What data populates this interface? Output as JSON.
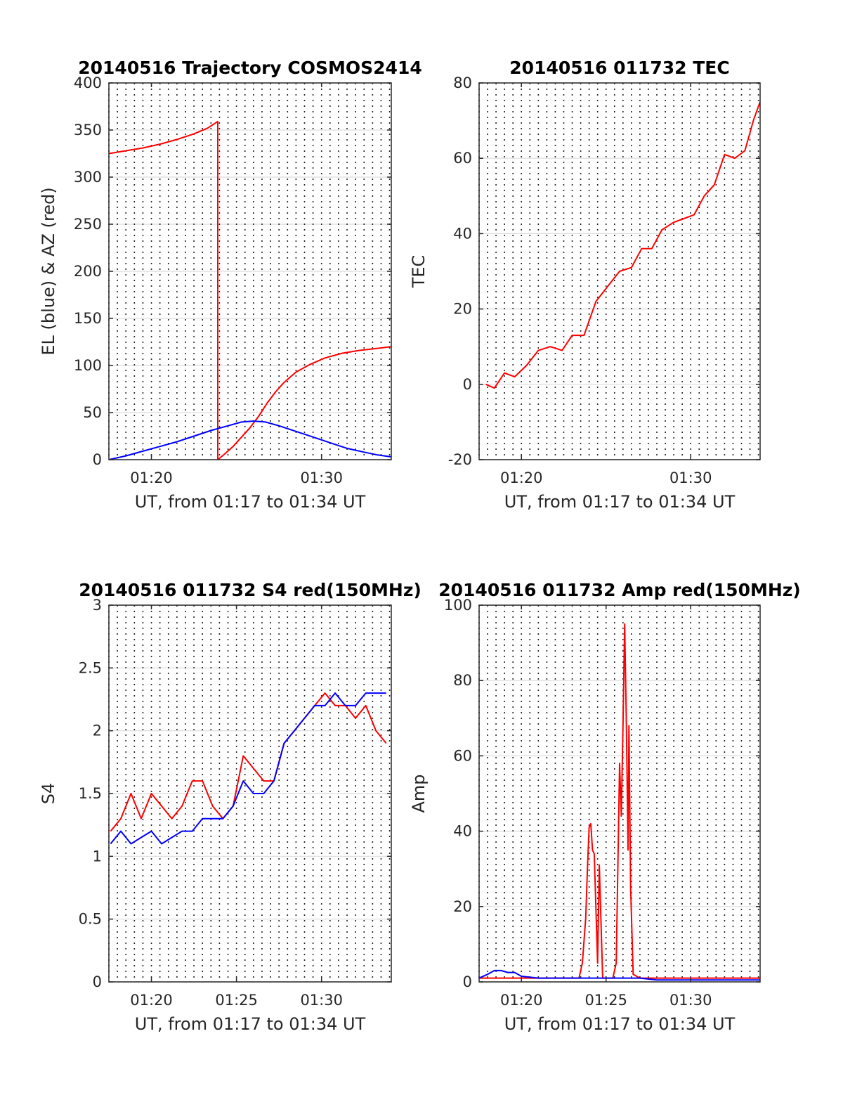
{
  "chart_data": [
    {
      "type": "line",
      "title": "20140516 Trajectory COSMOS2414",
      "xlabel": "UT, from 01:17 to 01:34 UT",
      "ylabel": "EL (blue) & AZ (red)",
      "x_unit": "minutes after 01:00 UT",
      "xlim": [
        17.5,
        34.1
      ],
      "ylim": [
        0,
        400
      ],
      "yticks": [
        0,
        50,
        100,
        150,
        200,
        250,
        300,
        350,
        400
      ],
      "xticks": [
        {
          "value": 20,
          "label": "01:20"
        },
        {
          "value": 30,
          "label": "01:30"
        }
      ],
      "grid": true,
      "series": [
        {
          "name": "AZ",
          "color": "#ff0000",
          "x": [
            17.5,
            18.5,
            19.5,
            20.5,
            21.5,
            22.5,
            23.3,
            23.9,
            23.9,
            24.3,
            24.8,
            25.3,
            25.8,
            26.3,
            26.8,
            27.3,
            27.8,
            28.5,
            29.3,
            30.2,
            31.2,
            32.2,
            33.2,
            34.1
          ],
          "y": [
            325,
            328,
            331,
            335,
            340,
            346,
            352,
            359,
            0,
            6,
            14,
            24,
            34,
            46,
            60,
            72,
            82,
            93,
            101,
            108,
            113,
            116,
            118,
            120
          ]
        },
        {
          "name": "EL",
          "color": "#0000ff",
          "x": [
            17.5,
            18.5,
            19.5,
            20.5,
            21.5,
            22.5,
            23.5,
            24.5,
            25.3,
            26.0,
            26.7,
            27.5,
            28.5,
            29.5,
            30.5,
            31.5,
            32.5,
            33.3,
            34.1
          ],
          "y": [
            0,
            4,
            9,
            14,
            19,
            25,
            31,
            36,
            40,
            41,
            40,
            36,
            30,
            24,
            18,
            12,
            8,
            5,
            3
          ]
        }
      ]
    },
    {
      "type": "line",
      "title": "20140516 011732 TEC",
      "xlabel": "UT, from 01:17 to 01:34 UT",
      "ylabel": "TEC",
      "x_unit": "minutes after 01:00 UT",
      "xlim": [
        17.5,
        34.1
      ],
      "ylim": [
        -20,
        80
      ],
      "yticks": [
        -20,
        0,
        20,
        40,
        60,
        80
      ],
      "xticks": [
        {
          "value": 20,
          "label": "01:20"
        },
        {
          "value": 30,
          "label": "01:30"
        }
      ],
      "grid": true,
      "series": [
        {
          "name": "TEC",
          "color": "#ff0000",
          "x": [
            17.9,
            18.4,
            19.0,
            19.6,
            20.3,
            21.0,
            21.7,
            22.4,
            23.0,
            23.7,
            24.4,
            25.1,
            25.8,
            26.5,
            27.1,
            27.7,
            28.3,
            29.0,
            29.6,
            30.2,
            30.8,
            31.4,
            32.0,
            32.6,
            33.2,
            33.7,
            34.1
          ],
          "y": [
            0,
            -1,
            3,
            2,
            5,
            9,
            10,
            9,
            13,
            13,
            22,
            26,
            30,
            31,
            36,
            36,
            41,
            43,
            44,
            45,
            50,
            53,
            61,
            60,
            62,
            70,
            75
          ]
        }
      ]
    },
    {
      "type": "line",
      "title": "20140516 011732 S4 red(150MHz)",
      "xlabel": "UT, from 01:17 to 01:34 UT",
      "ylabel": "S4",
      "x_unit": "minutes after 01:00 UT",
      "xlim": [
        17.5,
        34.1
      ],
      "ylim": [
        0,
        3
      ],
      "yticks": [
        0,
        0.5,
        1,
        1.5,
        2,
        2.5,
        3
      ],
      "yticklabels": [
        "0",
        "0.5",
        "1",
        "1.5",
        "2",
        "2.5",
        "3"
      ],
      "xticks": [
        {
          "value": 20,
          "label": "01:20"
        },
        {
          "value": 25,
          "label": "01:25"
        },
        {
          "value": 30,
          "label": "01:30"
        }
      ],
      "grid": true,
      "series": [
        {
          "color": "#ff0000",
          "x": [
            17.6,
            18.2,
            18.8,
            19.4,
            20.0,
            20.6,
            21.2,
            21.8,
            22.4,
            23.0,
            23.6,
            24.2,
            24.8,
            25.4,
            26.0,
            26.6,
            27.2,
            27.8,
            28.4,
            29.0,
            29.6,
            30.2,
            30.8,
            31.4,
            32.0,
            32.6,
            33.2,
            33.8
          ],
          "y": [
            1.2,
            1.3,
            1.5,
            1.3,
            1.5,
            1.4,
            1.3,
            1.4,
            1.6,
            1.6,
            1.4,
            1.3,
            1.4,
            1.8,
            1.7,
            1.6,
            1.6,
            1.9,
            2.0,
            2.1,
            2.2,
            2.3,
            2.2,
            2.2,
            2.1,
            2.2,
            2.0,
            1.9
          ]
        },
        {
          "color": "#0000ff",
          "x": [
            17.6,
            18.2,
            18.8,
            19.4,
            20.0,
            20.6,
            21.2,
            21.8,
            22.4,
            23.0,
            23.6,
            24.2,
            24.8,
            25.4,
            26.0,
            26.6,
            27.2,
            27.8,
            28.4,
            29.0,
            29.6,
            30.2,
            30.8,
            31.4,
            32.0,
            32.6,
            33.2,
            33.8
          ],
          "y": [
            1.1,
            1.2,
            1.1,
            1.15,
            1.2,
            1.1,
            1.15,
            1.2,
            1.2,
            1.3,
            1.3,
            1.3,
            1.4,
            1.6,
            1.5,
            1.5,
            1.6,
            1.9,
            2.0,
            2.1,
            2.2,
            2.2,
            2.3,
            2.2,
            2.2,
            2.3,
            2.3,
            2.3
          ]
        }
      ]
    },
    {
      "type": "line",
      "title": "20140516 011732 Amp red(150MHz)",
      "xlabel": "UT, from 01:17 to 01:34 UT",
      "ylabel": "Amp",
      "x_unit": "minutes after 01:00 UT",
      "xlim": [
        17.5,
        34.1
      ],
      "ylim": [
        0,
        100
      ],
      "yticks": [
        0,
        20,
        40,
        60,
        80,
        100
      ],
      "xticks": [
        {
          "value": 20,
          "label": "01:20"
        },
        {
          "value": 25,
          "label": "01:25"
        },
        {
          "value": 30,
          "label": "01:30"
        }
      ],
      "grid": true,
      "series": [
        {
          "color": "#ff0000",
          "x": [
            17.5,
            23.4,
            23.6,
            23.8,
            23.9,
            24.0,
            24.1,
            24.2,
            24.3,
            24.5,
            24.6,
            24.8,
            25.0,
            25.4,
            25.6,
            25.8,
            25.9,
            26.0,
            26.1,
            26.2,
            26.3,
            26.35,
            26.45,
            26.6,
            27.0,
            34.1
          ],
          "y": [
            1,
            1,
            5,
            17,
            30,
            41,
            42,
            35,
            34,
            5,
            31,
            1,
            1,
            1,
            5,
            58,
            44,
            68,
            95,
            69,
            35,
            68,
            25,
            2,
            1,
            1
          ]
        },
        {
          "color": "#0000ff",
          "x": [
            17.5,
            18.0,
            18.4,
            18.8,
            19.2,
            19.6,
            20.0,
            21.0,
            22.0,
            23.0,
            24.0,
            25.0,
            26.0,
            27.0,
            28.0,
            29.0,
            30.0,
            31.0,
            32.0,
            33.0,
            34.1
          ],
          "y": [
            1,
            2,
            3,
            3,
            2.5,
            2.5,
            1.5,
            1,
            1,
            1,
            1,
            1,
            1,
            1,
            0.5,
            0.5,
            0.5,
            0.5,
            0.5,
            0.5,
            0.5
          ]
        }
      ]
    }
  ]
}
